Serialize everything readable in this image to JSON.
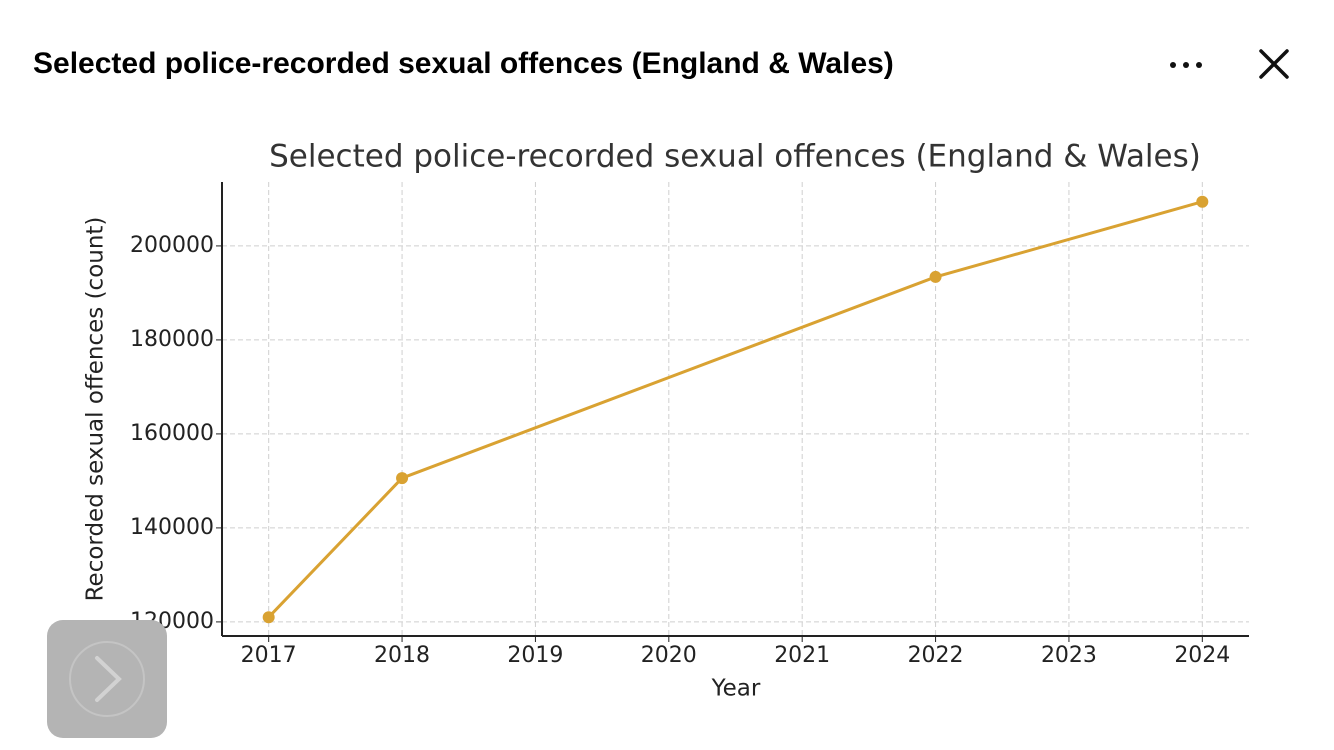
{
  "header": {
    "title": "Selected police-recorded sexual offences (England & Wales)"
  },
  "chart_data": {
    "type": "line",
    "title": "Selected police-recorded sexual offences (England & Wales)",
    "x_label": "Year",
    "y_label": "Recorded sexual offences (count)",
    "x": [
      2017,
      2018,
      2022,
      2024
    ],
    "series": [
      {
        "color": "#d9a232",
        "values": [
          121000,
          150600,
          193400,
          209400
        ]
      }
    ],
    "xlim": [
      2016.65,
      2024.35
    ],
    "xticks": [
      2017,
      2018,
      2019,
      2020,
      2021,
      2022,
      2023,
      2024
    ],
    "ylim": [
      117000,
      213600
    ],
    "yticks": [
      120000,
      140000,
      160000,
      180000,
      200000
    ],
    "grid": true
  }
}
